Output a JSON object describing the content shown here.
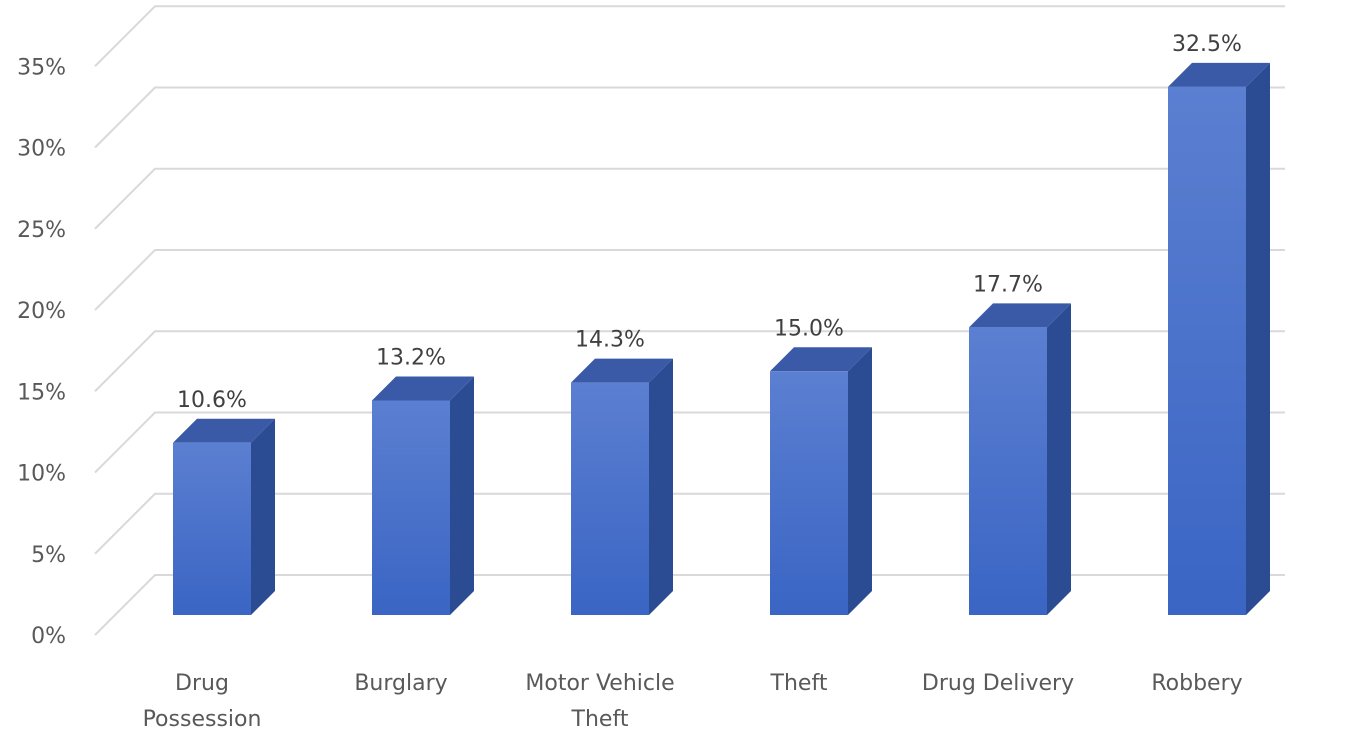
{
  "chart_data": {
    "type": "bar",
    "style": "3d-column",
    "categories": [
      "Drug\nPossession",
      "Burglary",
      "Motor Vehicle\nTheft",
      "Theft",
      "Drug Delivery",
      "Robbery"
    ],
    "values": [
      10.6,
      13.2,
      14.3,
      15.0,
      17.7,
      32.5
    ],
    "data_labels": [
      "10.6%",
      "13.2%",
      "14.3%",
      "15.0%",
      "17.7%",
      "32.5%"
    ],
    "y_ticks": [
      "0%",
      "5%",
      "10%",
      "15%",
      "20%",
      "25%",
      "30%",
      "35%"
    ],
    "ylim": [
      0,
      35
    ],
    "grid": true,
    "legend": "none"
  },
  "colors": {
    "bar_front_top": "#5b7fd1",
    "bar_front_bottom": "#3a65c4",
    "bar_side": "#2b4b93",
    "bar_top": "#3a5aa8",
    "gridline": "#d9d9d9",
    "axis_text": "#595959"
  }
}
